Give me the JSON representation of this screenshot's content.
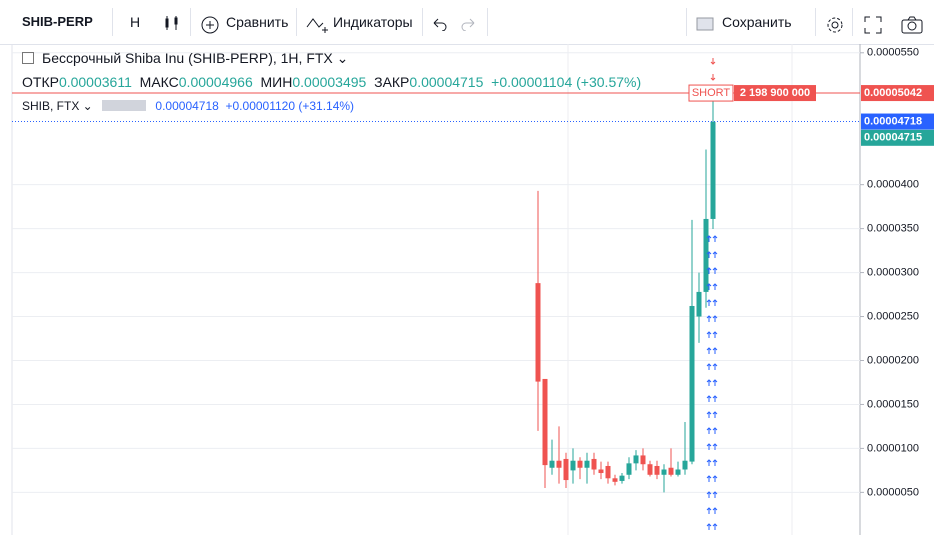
{
  "toolbar": {
    "symbol": "SHIB-PERP",
    "interval": "H",
    "compare": "Сравнить",
    "indicators": "Индикаторы",
    "save": "Сохранить"
  },
  "legend": {
    "title": "Бессрочный Shiba Inu (SHIB-PERP), 1H, FTX",
    "open_label": "ОТКР",
    "open": "0.00003611",
    "high_label": "МАКС",
    "high": "0.00004966",
    "low_label": "МИН",
    "low": "0.00003495",
    "close_label": "ЗАКР",
    "close": "0.00004715",
    "change": "+0.00001104 (+30.57%)"
  },
  "overlay": {
    "name": "SHIB, FTX",
    "value": "0.00004718",
    "change": "+0.00001120 (+31.14%)"
  },
  "chart_data": {
    "type": "candlestick",
    "up_color": "#26a69a",
    "down_color": "#ef5350",
    "ylim": [
      1.5e-07,
      5.6e-05
    ],
    "yticks": [
      {
        "value": 5e-06,
        "label": "0.0000050"
      },
      {
        "value": 1e-05,
        "label": "0.0000100"
      },
      {
        "value": 1.5e-05,
        "label": "0.0000150"
      },
      {
        "value": 2e-05,
        "label": "0.0000200"
      },
      {
        "value": 2.5e-05,
        "label": "0.0000250"
      },
      {
        "value": 3e-05,
        "label": "0.0000300"
      },
      {
        "value": 3.5e-05,
        "label": "0.0000350"
      },
      {
        "value": 4e-05,
        "label": "0.0000400"
      },
      {
        "value": 5.5e-05,
        "label": "0.0000550"
      }
    ],
    "grid": true,
    "open": [
      2.88e-05,
      1.79e-05,
      7.8e-06,
      8.6e-06,
      8.8e-06,
      7.5e-06,
      8.6e-06,
      7.8e-06,
      8.8e-06,
      7.6e-06,
      8e-06,
      6.6e-06,
      6.3e-06,
      7e-06,
      8.3e-06,
      9.2e-06,
      8.2e-06,
      8e-06,
      7e-06,
      7.8e-06,
      7e-06,
      7.6e-06,
      8.5e-06,
      2.5e-05,
      2.78e-05,
      3.61e-05
    ],
    "high": [
      3.93e-05,
      1.79e-05,
      1.1e-05,
      1.25e-05,
      9.5e-06,
      1e-05,
      9e-06,
      9.5e-06,
      9.5e-06,
      8.5e-06,
      8.5e-06,
      7e-06,
      7.2e-06,
      9e-06,
      9.8e-06,
      1e-05,
      8.6e-06,
      8.6e-06,
      8.2e-06,
      1e-05,
      8.5e-06,
      1.3e-05,
      3.6e-05,
      3e-05,
      4.4e-05,
      4.966e-05
    ],
    "low": [
      1.2e-05,
      5.5e-06,
      7e-06,
      6e-06,
      5.5e-06,
      6e-06,
      6.5e-06,
      6e-06,
      7e-06,
      6.5e-06,
      6e-06,
      5.8e-06,
      6e-06,
      6.5e-06,
      7.5e-06,
      7.5e-06,
      6.8e-06,
      6.5e-06,
      5e-06,
      6.8e-06,
      6.8e-06,
      7e-06,
      8.2e-06,
      2.2e-05,
      2.6e-05,
      3.495e-05
    ],
    "close": [
      1.76e-05,
      8.1e-06,
      8.6e-06,
      7.8e-06,
      6.4e-06,
      8.6e-06,
      7.8e-06,
      8.6e-06,
      7.6e-06,
      7.2e-06,
      6.6e-06,
      6.2e-06,
      6.9e-06,
      8.3e-06,
      9.2e-06,
      8.2e-06,
      7e-06,
      7e-06,
      7.6e-06,
      7e-06,
      7.6e-06,
      8.6e-06,
      2.62e-05,
      2.78e-05,
      3.61e-05,
      4.715e-05
    ],
    "price_lines": [
      {
        "value": 5.042e-05,
        "label": "0.00005042",
        "color": "#ef5350"
      },
      {
        "value": 4.718e-05,
        "label": "0.00004718",
        "color": "#2962ff"
      },
      {
        "value": 4.715e-05,
        "label": "0.00004715",
        "color": "#26a69a"
      }
    ],
    "annotation": {
      "text": "SHORT",
      "amount": "2 198 900 000"
    }
  }
}
